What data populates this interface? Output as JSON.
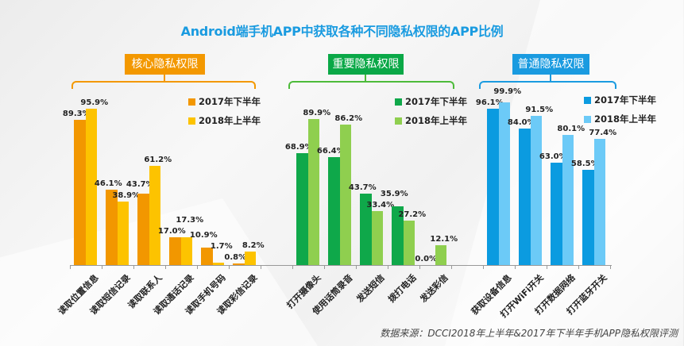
{
  "chart_data": {
    "type": "bar",
    "title": "Android端手机APP中获取各种不同隐私权限的APP比例",
    "xlabel": "",
    "ylabel": "",
    "ylim": [
      0,
      100
    ],
    "grid": false,
    "series_names": [
      "2017年下半年",
      "2018年上半年"
    ],
    "groups": [
      {
        "name": "核心隐私权限",
        "colors": [
          "#f29700",
          "#fdc300"
        ],
        "accent": "#f39800",
        "categories": [
          "读取位置信息",
          "读取短信记录",
          "读取联系人",
          "读取通话记录",
          "读取手机号码",
          "读取彩信记录"
        ],
        "series": [
          {
            "name": "2017年下半年",
            "values": [
              89.3,
              46.1,
              43.7,
              17.0,
              10.9,
              0.8
            ]
          },
          {
            "name": "2018年上半年",
            "values": [
              95.9,
              38.9,
              61.2,
              17.3,
              1.7,
              8.2
            ]
          }
        ]
      },
      {
        "name": "重要隐私权限",
        "colors": [
          "#0fa84a",
          "#8fcf4f"
        ],
        "accent": "#0aa847",
        "categories": [
          "打开摄像头",
          "使用话筒录音",
          "发送短信",
          "拨打电话",
          "发送彩信"
        ],
        "series": [
          {
            "name": "2017年下半年",
            "values": [
              68.9,
              66.4,
              43.7,
              35.9,
              0.0
            ]
          },
          {
            "name": "2018年上半年",
            "values": [
              89.9,
              86.2,
              33.4,
              27.2,
              12.1
            ]
          }
        ]
      },
      {
        "name": "普通隐私权限",
        "colors": [
          "#0b9be0",
          "#6ccaf7"
        ],
        "accent": "#1a9be0",
        "categories": [
          "获取设备信息",
          "打开WiFi开关",
          "打开数据网络",
          "打开蓝牙开关"
        ],
        "series": [
          {
            "name": "2017年下半年",
            "values": [
              96.1,
              84.0,
              63.0,
              58.5
            ]
          },
          {
            "name": "2018年上半年",
            "values": [
              99.9,
              91.5,
              80.1,
              77.4
            ]
          }
        ]
      }
    ]
  },
  "source": "数据来源：DCCI2018年上半年&2017年下半年手机APP隐私权限评测"
}
